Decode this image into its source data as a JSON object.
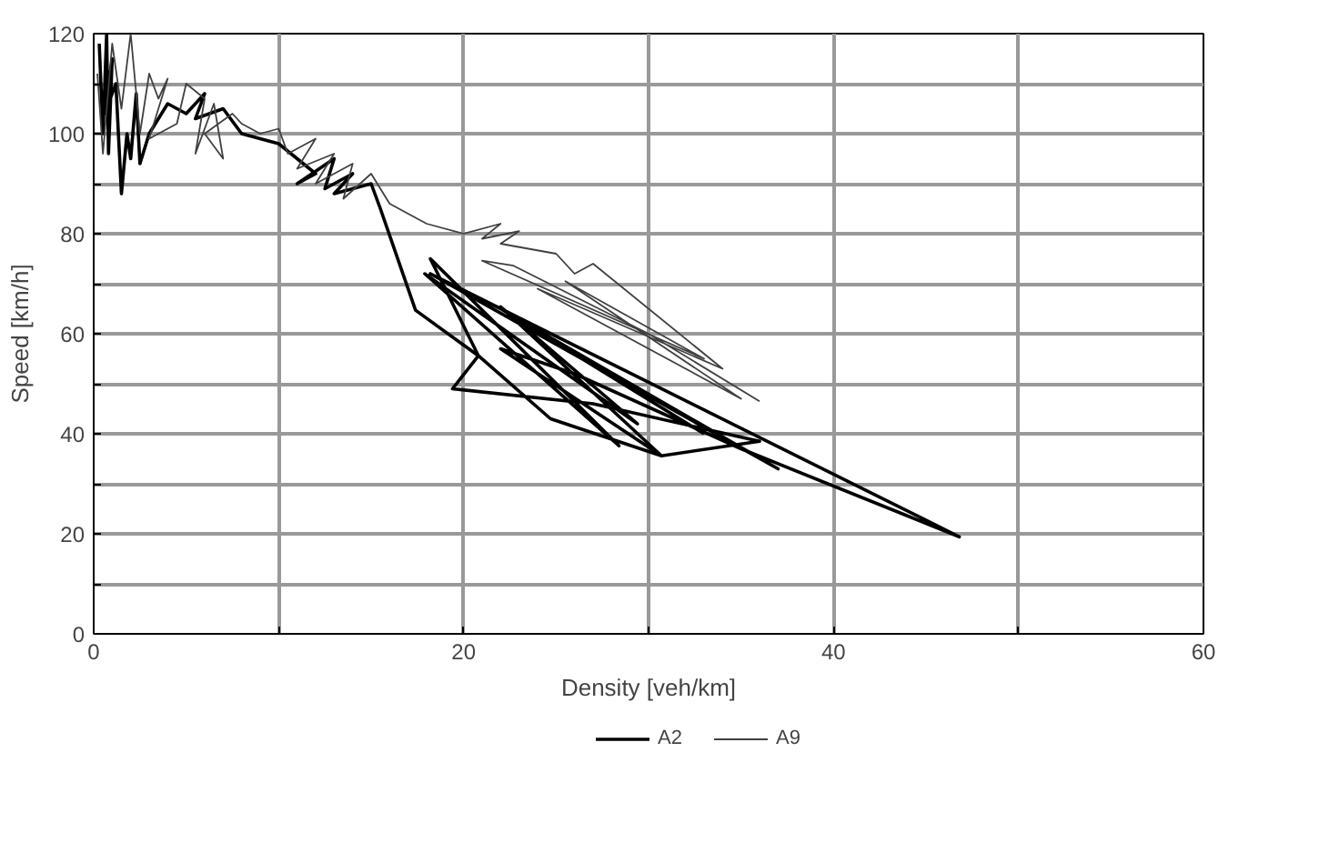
{
  "chart_data": {
    "type": "line",
    "xlabel": "Density [veh/km]",
    "ylabel": "Speed [km/h]",
    "xlim": [
      0,
      60
    ],
    "ylim": [
      0,
      120
    ],
    "xticks": [
      0,
      {
        "value": 10,
        "label": null
      },
      20,
      {
        "value": 30,
        "label": null
      },
      40,
      {
        "value": 50,
        "label": null
      },
      60
    ],
    "yticks": [
      0,
      {
        "value": 10,
        "label": null
      },
      20,
      {
        "value": 30,
        "label": null
      },
      40,
      {
        "value": 50,
        "label": null
      },
      60,
      {
        "value": 70,
        "label": null
      },
      80,
      {
        "value": 90,
        "label": null
      },
      100,
      {
        "value": 110,
        "label": null
      },
      120
    ],
    "grid": true,
    "legend": "bottom",
    "marker": "none",
    "line_style": "solid",
    "series": [
      {
        "name": "A2",
        "color": "#000000",
        "x": [
          0.3,
          0.5,
          0.7,
          0.8,
          1.0,
          0.6,
          1.2,
          1.5,
          1.8,
          2.0,
          2.3,
          2.5,
          3,
          4,
          5,
          6,
          5.5,
          7,
          8,
          9,
          10,
          11,
          12,
          11,
          13,
          12.5,
          14,
          13,
          15,
          15.5,
          17.4,
          20.8,
          18.2,
          28.4,
          17.9,
          29.4,
          22,
          30.7,
          24.7,
          20.8,
          19.4,
          27,
          36,
          30.7,
          22,
          26,
          35,
          46.8,
          18.2,
          37,
          22,
          33
        ],
        "values": [
          118,
          100,
          120,
          96,
          115,
          104,
          110,
          88,
          100,
          95,
          108,
          94,
          100,
          106,
          104,
          108,
          103,
          105,
          100,
          99,
          98,
          95,
          92,
          90,
          95,
          89,
          92,
          88,
          90,
          85,
          64.7,
          55.6,
          75,
          37.6,
          72,
          42,
          65.4,
          35.6,
          43,
          55.6,
          49,
          46,
          38.5,
          35.6,
          57,
          52,
          37,
          19.4,
          72,
          33,
          65,
          40
        ]
      },
      {
        "name": "A9",
        "color": "#404040",
        "x": [
          0.2,
          0.5,
          1,
          1.5,
          2,
          2.5,
          3,
          3.5,
          4,
          3,
          4.5,
          5,
          6,
          5.5,
          6.5,
          7,
          6,
          7.5,
          8,
          9,
          10,
          10.5,
          12,
          11,
          13,
          12,
          14,
          13.5,
          15,
          16,
          18,
          20,
          22,
          21,
          23,
          22,
          25,
          26,
          27,
          34,
          24,
          35,
          25.5,
          33,
          21,
          22.7,
          30,
          36
        ],
        "values": [
          112,
          96,
          118,
          105,
          120,
          100,
          112,
          107,
          111,
          99,
          102,
          110,
          107,
          96,
          106,
          95,
          100,
          104,
          102,
          100,
          101,
          96,
          99,
          93,
          96,
          90,
          94,
          87,
          92,
          86,
          82,
          80,
          82,
          79,
          80.5,
          78,
          76,
          72,
          74,
          53,
          69,
          47,
          70.5,
          55,
          74.6,
          73.6,
          60,
          46.5
        ]
      }
    ]
  }
}
